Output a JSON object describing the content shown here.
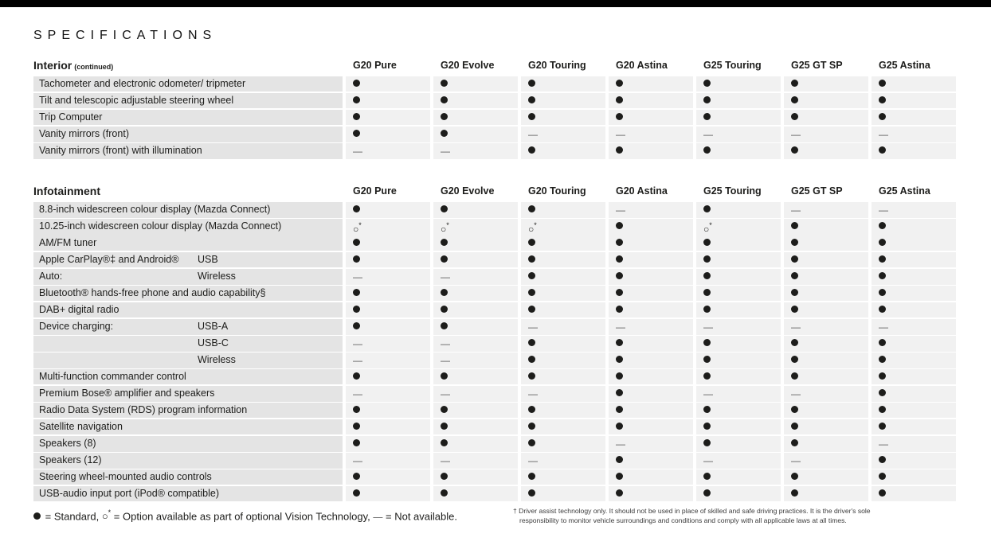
{
  "page": {
    "title": "SPECIFICATIONS"
  },
  "columns": [
    "G20 Pure",
    "G20 Evolve",
    "G20 Touring",
    "G20 Astina",
    "G25 Touring",
    "G25 GT SP",
    "G25 Astina"
  ],
  "sections": [
    {
      "title": "Interior",
      "title_suffix": "(continued)",
      "rows": [
        {
          "label": "Tachometer and electronic odometer/ tripmeter",
          "values": [
            "dot",
            "dot",
            "dot",
            "dot",
            "dot",
            "dot",
            "dot"
          ]
        },
        {
          "label": "Tilt and telescopic adjustable steering wheel",
          "values": [
            "dot",
            "dot",
            "dot",
            "dot",
            "dot",
            "dot",
            "dot"
          ]
        },
        {
          "label": "Trip Computer",
          "values": [
            "dot",
            "dot",
            "dot",
            "dot",
            "dot",
            "dot",
            "dot"
          ]
        },
        {
          "label": "Vanity mirrors (front)",
          "values": [
            "dot",
            "dot",
            "dash",
            "dash",
            "dash",
            "dash",
            "dash"
          ]
        },
        {
          "label": "Vanity mirrors (front) with illumination",
          "values": [
            "dash",
            "dash",
            "dot",
            "dot",
            "dot",
            "dot",
            "dot"
          ]
        }
      ]
    },
    {
      "title": "Infotainment",
      "title_suffix": "",
      "rows": [
        {
          "label": "8.8-inch widescreen colour display (Mazda Connect)",
          "values": [
            "dot",
            "dot",
            "dot",
            "dash",
            "dot",
            "dash",
            "dash"
          ]
        },
        {
          "label": "10.25-inch widescreen colour display (Mazda Connect)",
          "values": [
            "opt",
            "opt",
            "opt",
            "dot",
            "opt",
            "dot",
            "dot"
          ]
        },
        {
          "label": "AM/FM tuner",
          "values": [
            "dot",
            "dot",
            "dot",
            "dot",
            "dot",
            "dot",
            "dot"
          ]
        },
        {
          "label": "Apple CarPlay®‡ and Android®",
          "sublabel": "USB",
          "values": [
            "dot",
            "dot",
            "dot",
            "dot",
            "dot",
            "dot",
            "dot"
          ]
        },
        {
          "label": "Auto:",
          "sublabel": "Wireless",
          "values": [
            "dash",
            "dash",
            "dot",
            "dot",
            "dot",
            "dot",
            "dot"
          ]
        },
        {
          "label": "Bluetooth® hands-free phone and audio capability§",
          "values": [
            "dot",
            "dot",
            "dot",
            "dot",
            "dot",
            "dot",
            "dot"
          ]
        },
        {
          "label": "DAB+ digital radio",
          "values": [
            "dot",
            "dot",
            "dot",
            "dot",
            "dot",
            "dot",
            "dot"
          ]
        },
        {
          "label": "Device charging:",
          "sublabel": "USB-A",
          "values": [
            "dot",
            "dot",
            "dash",
            "dash",
            "dash",
            "dash",
            "dash"
          ]
        },
        {
          "label": "",
          "sublabel": "USB-C",
          "values": [
            "dash",
            "dash",
            "dot",
            "dot",
            "dot",
            "dot",
            "dot"
          ]
        },
        {
          "label": "",
          "sublabel": "Wireless",
          "values": [
            "dash",
            "dash",
            "dot",
            "dot",
            "dot",
            "dot",
            "dot"
          ]
        },
        {
          "label": "Multi-function commander control",
          "values": [
            "dot",
            "dot",
            "dot",
            "dot",
            "dot",
            "dot",
            "dot"
          ]
        },
        {
          "label": "Premium Bose® amplifier and speakers",
          "values": [
            "dash",
            "dash",
            "dash",
            "dot",
            "dash",
            "dash",
            "dot"
          ]
        },
        {
          "label": "Radio Data System (RDS) program information",
          "values": [
            "dot",
            "dot",
            "dot",
            "dot",
            "dot",
            "dot",
            "dot"
          ]
        },
        {
          "label": "Satellite navigation",
          "values": [
            "dot",
            "dot",
            "dot",
            "dot",
            "dot",
            "dot",
            "dot"
          ]
        },
        {
          "label": "Speakers (8)",
          "values": [
            "dot",
            "dot",
            "dot",
            "dash",
            "dot",
            "dot",
            "dash"
          ]
        },
        {
          "label": "Speakers (12)",
          "values": [
            "dash",
            "dash",
            "dash",
            "dot",
            "dash",
            "dash",
            "dot"
          ]
        },
        {
          "label": "Steering wheel-mounted audio controls",
          "values": [
            "dot",
            "dot",
            "dot",
            "dot",
            "dot",
            "dot",
            "dot"
          ]
        },
        {
          "label": "USB-audio input port (iPod® compatible)",
          "values": [
            "dot",
            "dot",
            "dot",
            "dot",
            "dot",
            "dot",
            "dot"
          ]
        }
      ]
    }
  ],
  "legend": {
    "parts": [
      {
        "symbol": "dot",
        "text": " = Standard, "
      },
      {
        "symbol": "opt",
        "text": " = Option available as part of optional Vision Technology, "
      },
      {
        "symbol": "dash",
        "text": " = Not available."
      }
    ]
  },
  "footnote": {
    "marker": "†",
    "text": "Driver assist technology only. It should not be used in place of skilled and safe driving practices. It is the driver's sole responsibility to monitor vehicle surroundings and conditions and comply with all applicable laws at all times."
  },
  "colors": {
    "top_bar": "#000000",
    "label_cell_bg": "#e4e4e4",
    "value_cell_bg": "#f1f1f1",
    "marker": "#1d1d1b",
    "text": "#1d1d1b"
  }
}
